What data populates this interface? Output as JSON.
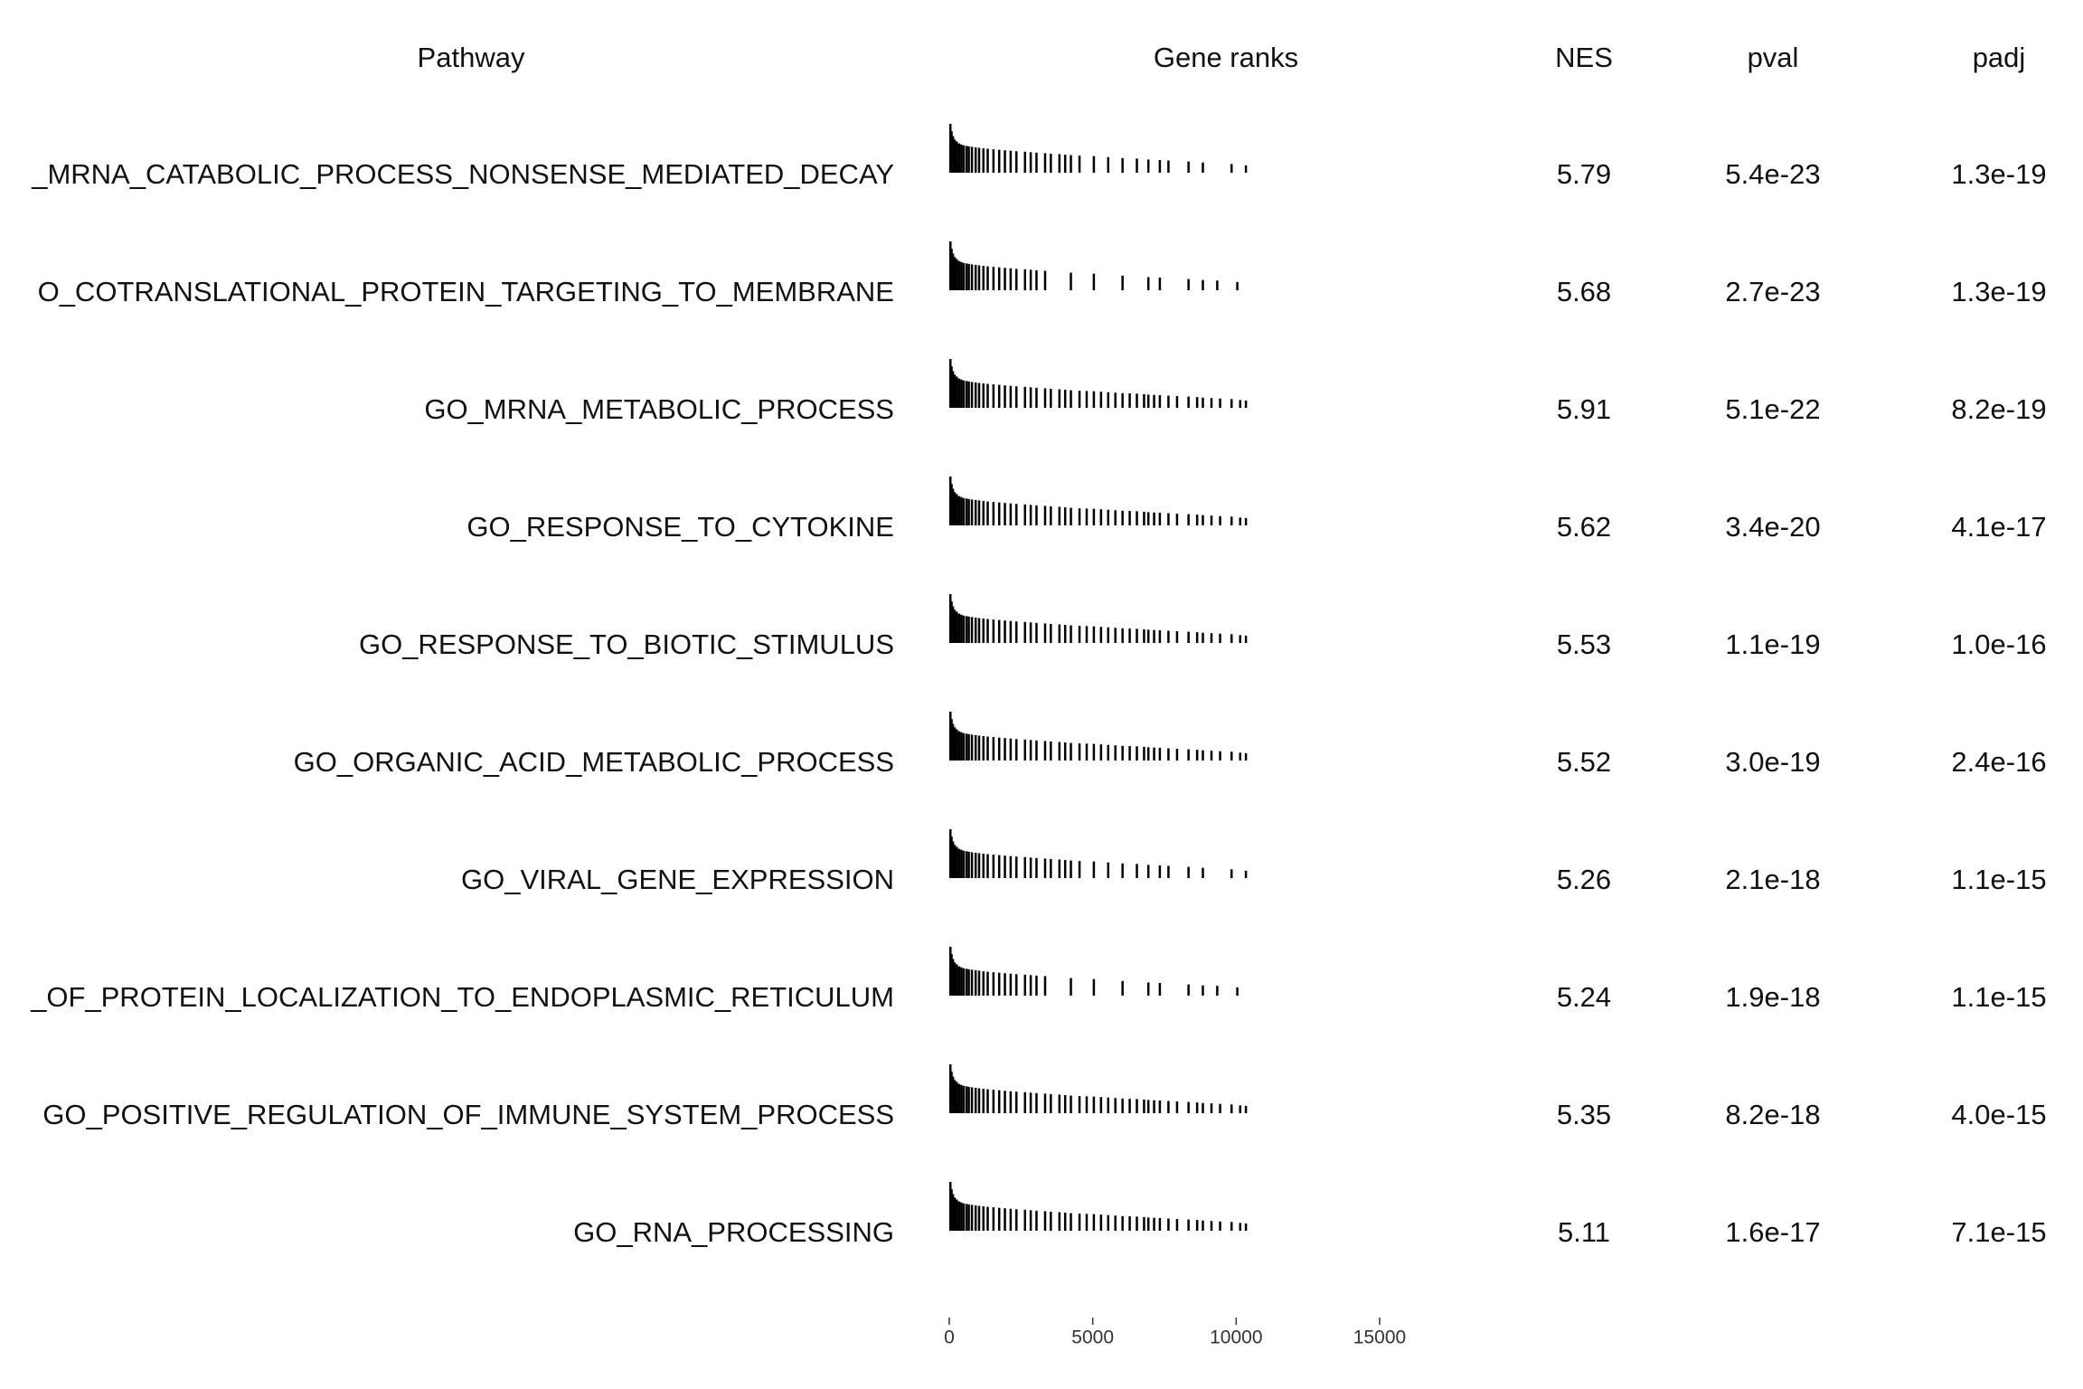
{
  "chart_data": {
    "type": "gsea_table",
    "headers": [
      "Pathway",
      "Gene ranks",
      "NES",
      "pval",
      "padj"
    ],
    "pathways": [
      "_MRNA_CATABOLIC_PROCESS_NONSENSE_MEDIATED_DECAY",
      "O_COTRANSLATIONAL_PROTEIN_TARGETING_TO_MEMBRANE",
      "GO_MRNA_METABOLIC_PROCESS",
      "GO_RESPONSE_TO_CYTOKINE",
      "GO_RESPONSE_TO_BIOTIC_STIMULUS",
      "GO_ORGANIC_ACID_METABOLIC_PROCESS",
      "GO_VIRAL_GENE_EXPRESSION",
      "_OF_PROTEIN_LOCALIZATION_TO_ENDOPLASMIC_RETICULUM",
      "GO_POSITIVE_REGULATION_OF_IMMUNE_SYSTEM_PROCESS",
      "GO_RNA_PROCESSING"
    ],
    "nes": [
      5.79,
      5.68,
      5.91,
      5.62,
      5.53,
      5.52,
      5.26,
      5.24,
      5.35,
      5.11
    ],
    "pval": {
      "values": [
        5.4e-23,
        2.7e-23,
        5.1e-22,
        3.4e-20,
        1.1e-19,
        3e-19,
        2.1e-18,
        1.9e-18,
        8.2e-18,
        1.6e-17
      ],
      "value_labels": [
        "5.4e-23",
        "2.7e-23",
        "5.1e-22",
        "3.4e-20",
        "1.1e-19",
        "3.0e-19",
        "2.1e-18",
        "1.9e-18",
        "8.2e-18",
        "1.6e-17"
      ]
    },
    "padj": {
      "values": [
        1.3e-19,
        1.3e-19,
        8.2e-19,
        4.1e-17,
        1e-16,
        2.4e-16,
        1.1e-15,
        1.1e-15,
        4e-15,
        7.1e-15
      ],
      "value_labels": [
        "1.3e-19",
        "1.3e-19",
        "8.2e-19",
        "4.1e-17",
        "1.0e-16",
        "2.4e-16",
        "1.1e-15",
        "1.1e-15",
        "4.0e-15",
        "7.1e-15"
      ]
    },
    "hits": [
      {
        "ranks": [
          0,
          40,
          90,
          150,
          220,
          300,
          380,
          460,
          560,
          640,
          750,
          880,
          1000,
          1150,
          1300,
          1500,
          1700,
          1900,
          2100,
          2300,
          2600,
          2800,
          3000,
          3300,
          3500,
          3800,
          4000,
          4200,
          4500,
          5000,
          5500,
          6000,
          6500,
          6900,
          7300,
          7600,
          8300,
          8800,
          9800,
          10300
        ],
        "stats": [
          1.0,
          0.85,
          0.75,
          0.68,
          0.64,
          0.6,
          0.58,
          0.56,
          0.55,
          0.54,
          0.53,
          0.52,
          0.51,
          0.5,
          0.49,
          0.48,
          0.47,
          0.46,
          0.45,
          0.44,
          0.43,
          0.42,
          0.41,
          0.4,
          0.39,
          0.38,
          0.37,
          0.36,
          0.35,
          0.34,
          0.32,
          0.3,
          0.29,
          0.27,
          0.26,
          0.25,
          0.23,
          0.21,
          0.18,
          0.15
        ]
      },
      {
        "ranks": [
          0,
          40,
          90,
          150,
          220,
          300,
          380,
          460,
          560,
          640,
          750,
          880,
          1000,
          1150,
          1300,
          1500,
          1700,
          1900,
          2100,
          2300,
          2600,
          2800,
          3000,
          3300,
          4200,
          5000,
          6000,
          6900,
          7300,
          8300,
          8800,
          9300,
          10000
        ],
        "stats": [
          1.0,
          0.85,
          0.75,
          0.68,
          0.64,
          0.6,
          0.58,
          0.56,
          0.55,
          0.54,
          0.53,
          0.52,
          0.51,
          0.5,
          0.49,
          0.48,
          0.47,
          0.46,
          0.45,
          0.44,
          0.43,
          0.42,
          0.41,
          0.4,
          0.36,
          0.34,
          0.3,
          0.27,
          0.26,
          0.23,
          0.21,
          0.2,
          0.17
        ]
      },
      {
        "ranks": [
          0,
          40,
          90,
          150,
          220,
          300,
          380,
          460,
          560,
          640,
          750,
          880,
          1000,
          1150,
          1300,
          1500,
          1700,
          1900,
          2100,
          2300,
          2600,
          2800,
          3000,
          3300,
          3500,
          3800,
          4000,
          4200,
          4500,
          4750,
          5000,
          5250,
          5500,
          5750,
          6000,
          6250,
          6500,
          6750,
          6900,
          7100,
          7300,
          7600,
          7900,
          8300,
          8600,
          8800,
          9100,
          9400,
          9800,
          10100,
          10300
        ],
        "stats": [
          1.0,
          0.85,
          0.75,
          0.68,
          0.64,
          0.6,
          0.58,
          0.56,
          0.55,
          0.54,
          0.53,
          0.52,
          0.51,
          0.5,
          0.49,
          0.48,
          0.47,
          0.46,
          0.45,
          0.44,
          0.43,
          0.42,
          0.41,
          0.4,
          0.39,
          0.38,
          0.37,
          0.36,
          0.35,
          0.345,
          0.34,
          0.33,
          0.32,
          0.31,
          0.3,
          0.295,
          0.29,
          0.28,
          0.27,
          0.265,
          0.26,
          0.25,
          0.24,
          0.23,
          0.22,
          0.21,
          0.2,
          0.19,
          0.18,
          0.16,
          0.15
        ]
      },
      {
        "ranks": [
          0,
          40,
          90,
          150,
          220,
          300,
          380,
          460,
          560,
          640,
          750,
          880,
          1000,
          1150,
          1300,
          1500,
          1700,
          1900,
          2100,
          2300,
          2600,
          2800,
          3000,
          3300,
          3500,
          3800,
          4000,
          4200,
          4500,
          4750,
          5000,
          5250,
          5500,
          5750,
          6000,
          6250,
          6500,
          6750,
          6900,
          7100,
          7300,
          7600,
          7900,
          8300,
          8600,
          8800,
          9100,
          9400,
          9800,
          10100,
          10300
        ],
        "stats": [
          1.0,
          0.85,
          0.75,
          0.68,
          0.64,
          0.6,
          0.58,
          0.56,
          0.55,
          0.54,
          0.53,
          0.52,
          0.51,
          0.5,
          0.49,
          0.48,
          0.47,
          0.46,
          0.45,
          0.44,
          0.43,
          0.42,
          0.41,
          0.4,
          0.39,
          0.38,
          0.37,
          0.36,
          0.35,
          0.345,
          0.34,
          0.33,
          0.32,
          0.31,
          0.3,
          0.295,
          0.29,
          0.28,
          0.27,
          0.265,
          0.26,
          0.25,
          0.24,
          0.23,
          0.22,
          0.21,
          0.2,
          0.19,
          0.18,
          0.16,
          0.15
        ]
      },
      {
        "ranks": [
          0,
          40,
          90,
          150,
          220,
          300,
          380,
          460,
          560,
          640,
          750,
          880,
          1000,
          1150,
          1300,
          1500,
          1700,
          1900,
          2100,
          2300,
          2600,
          2800,
          3000,
          3300,
          3500,
          3800,
          4000,
          4200,
          4500,
          4750,
          5000,
          5250,
          5500,
          5750,
          6000,
          6250,
          6500,
          6750,
          6900,
          7100,
          7300,
          7600,
          7900,
          8300,
          8600,
          8800,
          9100,
          9400,
          9800,
          10100,
          10300
        ],
        "stats": [
          1.0,
          0.85,
          0.75,
          0.68,
          0.64,
          0.6,
          0.58,
          0.56,
          0.55,
          0.54,
          0.53,
          0.52,
          0.51,
          0.5,
          0.49,
          0.48,
          0.47,
          0.46,
          0.45,
          0.44,
          0.43,
          0.42,
          0.41,
          0.4,
          0.39,
          0.38,
          0.37,
          0.36,
          0.35,
          0.345,
          0.34,
          0.33,
          0.32,
          0.31,
          0.3,
          0.295,
          0.29,
          0.28,
          0.27,
          0.265,
          0.26,
          0.25,
          0.24,
          0.23,
          0.22,
          0.21,
          0.2,
          0.19,
          0.18,
          0.16,
          0.15
        ]
      },
      {
        "ranks": [
          0,
          40,
          90,
          150,
          220,
          300,
          380,
          460,
          560,
          640,
          750,
          880,
          1000,
          1150,
          1300,
          1500,
          1700,
          1900,
          2100,
          2300,
          2600,
          2800,
          3000,
          3300,
          3500,
          3800,
          4000,
          4200,
          4500,
          4750,
          5000,
          5250,
          5500,
          5750,
          6000,
          6250,
          6500,
          6750,
          6900,
          7100,
          7300,
          7600,
          7900,
          8300,
          8600,
          8800,
          9100,
          9400,
          9800,
          10100,
          10300
        ],
        "stats": [
          1.0,
          0.85,
          0.75,
          0.68,
          0.64,
          0.6,
          0.58,
          0.56,
          0.55,
          0.54,
          0.53,
          0.52,
          0.51,
          0.5,
          0.49,
          0.48,
          0.47,
          0.46,
          0.45,
          0.44,
          0.43,
          0.42,
          0.41,
          0.4,
          0.39,
          0.38,
          0.37,
          0.36,
          0.35,
          0.345,
          0.34,
          0.33,
          0.32,
          0.31,
          0.3,
          0.295,
          0.29,
          0.28,
          0.27,
          0.265,
          0.26,
          0.25,
          0.24,
          0.23,
          0.22,
          0.21,
          0.2,
          0.19,
          0.18,
          0.16,
          0.15
        ]
      },
      {
        "ranks": [
          0,
          40,
          90,
          150,
          220,
          300,
          380,
          460,
          560,
          640,
          750,
          880,
          1000,
          1150,
          1300,
          1500,
          1700,
          1900,
          2100,
          2300,
          2600,
          2800,
          3000,
          3300,
          3500,
          3800,
          4000,
          4200,
          4500,
          5000,
          5500,
          6000,
          6500,
          6900,
          7300,
          7600,
          8300,
          8800,
          9800,
          10300
        ],
        "stats": [
          1.0,
          0.85,
          0.75,
          0.68,
          0.64,
          0.6,
          0.58,
          0.56,
          0.55,
          0.54,
          0.53,
          0.52,
          0.51,
          0.5,
          0.49,
          0.48,
          0.47,
          0.46,
          0.45,
          0.44,
          0.43,
          0.42,
          0.41,
          0.4,
          0.39,
          0.38,
          0.37,
          0.36,
          0.35,
          0.34,
          0.32,
          0.3,
          0.29,
          0.27,
          0.26,
          0.25,
          0.23,
          0.21,
          0.18,
          0.15
        ]
      },
      {
        "ranks": [
          0,
          40,
          90,
          150,
          220,
          300,
          380,
          460,
          560,
          640,
          750,
          880,
          1000,
          1150,
          1300,
          1500,
          1700,
          1900,
          2100,
          2300,
          2600,
          2800,
          3000,
          3300,
          4200,
          5000,
          6000,
          6900,
          7300,
          8300,
          8800,
          9300,
          10000
        ],
        "stats": [
          1.0,
          0.85,
          0.75,
          0.68,
          0.64,
          0.6,
          0.58,
          0.56,
          0.55,
          0.54,
          0.53,
          0.52,
          0.51,
          0.5,
          0.49,
          0.48,
          0.47,
          0.46,
          0.45,
          0.44,
          0.43,
          0.42,
          0.41,
          0.4,
          0.36,
          0.34,
          0.3,
          0.27,
          0.26,
          0.23,
          0.21,
          0.2,
          0.17
        ]
      },
      {
        "ranks": [
          0,
          40,
          90,
          150,
          220,
          300,
          380,
          460,
          560,
          640,
          750,
          880,
          1000,
          1150,
          1300,
          1500,
          1700,
          1900,
          2100,
          2300,
          2600,
          2800,
          3000,
          3300,
          3500,
          3800,
          4000,
          4200,
          4500,
          4750,
          5000,
          5250,
          5500,
          5750,
          6000,
          6250,
          6500,
          6750,
          6900,
          7100,
          7300,
          7600,
          7900,
          8300,
          8600,
          8800,
          9100,
          9400,
          9800,
          10100,
          10300
        ],
        "stats": [
          1.0,
          0.85,
          0.75,
          0.68,
          0.64,
          0.6,
          0.58,
          0.56,
          0.55,
          0.54,
          0.53,
          0.52,
          0.51,
          0.5,
          0.49,
          0.48,
          0.47,
          0.46,
          0.45,
          0.44,
          0.43,
          0.42,
          0.41,
          0.4,
          0.39,
          0.38,
          0.37,
          0.36,
          0.35,
          0.345,
          0.34,
          0.33,
          0.32,
          0.31,
          0.3,
          0.295,
          0.29,
          0.28,
          0.27,
          0.265,
          0.26,
          0.25,
          0.24,
          0.23,
          0.22,
          0.21,
          0.2,
          0.19,
          0.18,
          0.16,
          0.15
        ]
      },
      {
        "ranks": [
          0,
          40,
          90,
          150,
          220,
          300,
          380,
          460,
          560,
          640,
          750,
          880,
          1000,
          1150,
          1300,
          1500,
          1700,
          1900,
          2100,
          2300,
          2600,
          2800,
          3000,
          3300,
          3500,
          3800,
          4000,
          4200,
          4500,
          4750,
          5000,
          5250,
          5500,
          5750,
          6000,
          6250,
          6500,
          6750,
          6900,
          7100,
          7300,
          7600,
          7900,
          8300,
          8600,
          8800,
          9100,
          9400,
          9800,
          10100,
          10300
        ],
        "stats": [
          1.0,
          0.85,
          0.75,
          0.68,
          0.64,
          0.6,
          0.58,
          0.56,
          0.55,
          0.54,
          0.53,
          0.52,
          0.51,
          0.5,
          0.49,
          0.48,
          0.47,
          0.46,
          0.45,
          0.44,
          0.43,
          0.42,
          0.41,
          0.4,
          0.39,
          0.38,
          0.37,
          0.36,
          0.35,
          0.345,
          0.34,
          0.33,
          0.32,
          0.31,
          0.3,
          0.295,
          0.29,
          0.28,
          0.27,
          0.265,
          0.26,
          0.25,
          0.24,
          0.23,
          0.22,
          0.21,
          0.2,
          0.19,
          0.18,
          0.16,
          0.15
        ]
      }
    ],
    "xlim": [
      0,
      15000
    ],
    "xticks": [
      0,
      5000,
      10000,
      15000
    ],
    "stat_lim": [
      0,
      1
    ],
    "color": "#000000"
  }
}
